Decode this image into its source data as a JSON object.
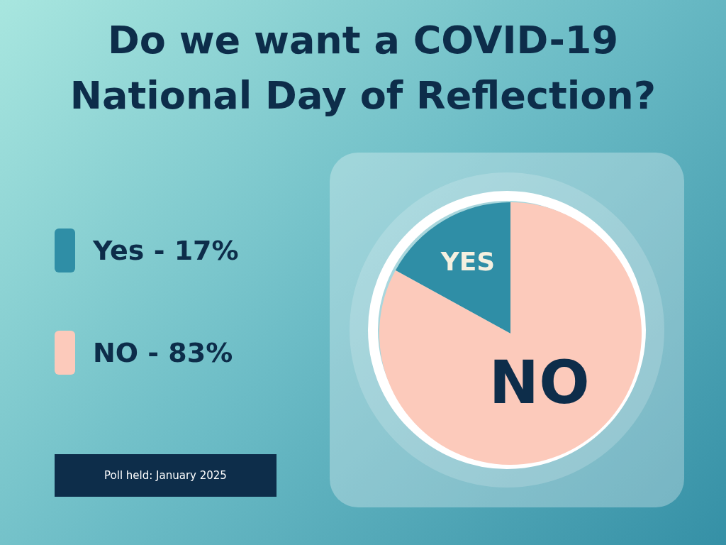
{
  "chart_data": {
    "type": "pie",
    "title": "Do we want a COVID-19 National Day of Reflection?",
    "categories": [
      "Yes - 17%",
      "NO - 83%"
    ],
    "values": [
      17,
      83
    ],
    "colors": [
      "#2f8ea6",
      "#fccabb"
    ],
    "value_labels": [
      "YES",
      "NO"
    ],
    "legend": "left",
    "annotations": [
      "Poll held: January 2025"
    ]
  }
}
